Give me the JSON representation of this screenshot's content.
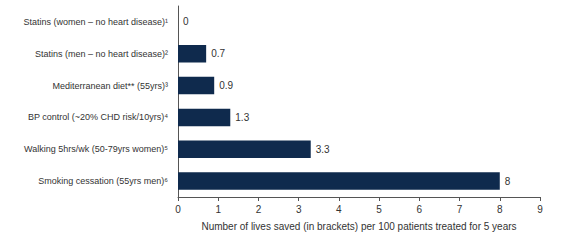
{
  "chart_data": {
    "type": "bar",
    "orientation": "horizontal",
    "categories": [
      "Statins (women – no heart disease)¹",
      "Statins (men – no heart disease)²",
      "Mediterranean diet** (55yrs)³",
      "BP control (~20% CHD risk/10yrs)⁴",
      "Walking 5hrs/wk (50-79yrs women)⁵",
      "Smoking cessation (55yrs men)⁶"
    ],
    "values": [
      0,
      0.7,
      0.9,
      1.3,
      3.3,
      8
    ],
    "color": "#0f2a4d",
    "x_label": "Number of lives saved (in brackets) per 100 patients treated for 5 years",
    "xlim": [
      0,
      9
    ],
    "xticks": [
      0,
      1,
      2,
      3,
      4,
      5,
      6,
      7,
      8,
      9
    ],
    "grid": false,
    "data_labels": true
  }
}
